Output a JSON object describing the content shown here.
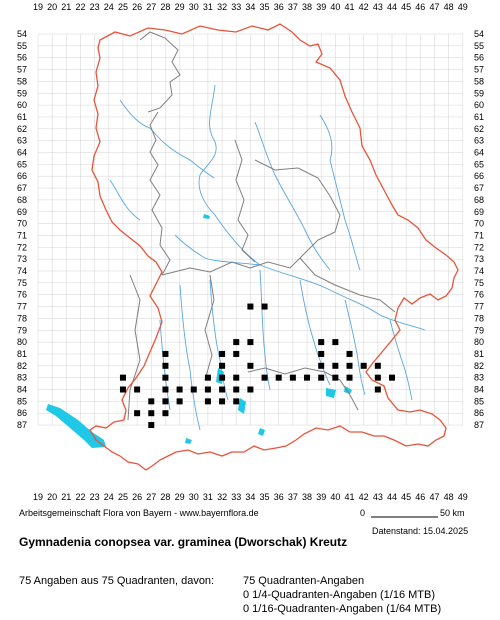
{
  "grid": {
    "x_labels": [
      "19",
      "20",
      "21",
      "22",
      "23",
      "24",
      "25",
      "26",
      "27",
      "28",
      "29",
      "30",
      "31",
      "32",
      "33",
      "34",
      "35",
      "36",
      "37",
      "38",
      "39",
      "40",
      "41",
      "42",
      "43",
      "44",
      "45",
      "46",
      "47",
      "48",
      "49"
    ],
    "y_labels": [
      "54",
      "55",
      "56",
      "57",
      "58",
      "59",
      "60",
      "61",
      "62",
      "63",
      "64",
      "65",
      "66",
      "67",
      "68",
      "69",
      "70",
      "71",
      "72",
      "73",
      "74",
      "75",
      "76",
      "77",
      "78",
      "79",
      "80",
      "81",
      "82",
      "83",
      "84",
      "85",
      "86",
      "87"
    ]
  },
  "occurrences": [
    [
      34,
      77
    ],
    [
      35,
      77
    ],
    [
      33,
      80
    ],
    [
      34,
      80
    ],
    [
      39,
      80
    ],
    [
      40,
      80
    ],
    [
      28,
      81
    ],
    [
      32,
      81
    ],
    [
      33,
      81
    ],
    [
      39,
      81
    ],
    [
      41,
      81
    ],
    [
      28,
      82
    ],
    [
      32,
      82
    ],
    [
      34,
      82
    ],
    [
      39,
      82
    ],
    [
      40,
      82
    ],
    [
      41,
      82
    ],
    [
      42,
      82
    ],
    [
      43,
      82
    ],
    [
      25,
      83
    ],
    [
      28,
      83
    ],
    [
      31,
      83
    ],
    [
      32,
      83
    ],
    [
      33,
      83
    ],
    [
      35,
      83
    ],
    [
      36,
      83
    ],
    [
      37,
      83
    ],
    [
      38,
      83
    ],
    [
      39,
      83
    ],
    [
      40,
      83
    ],
    [
      41,
      83
    ],
    [
      43,
      83
    ],
    [
      44,
      83
    ],
    [
      25,
      84
    ],
    [
      26,
      84
    ],
    [
      28,
      84
    ],
    [
      29,
      84
    ],
    [
      30,
      84
    ],
    [
      31,
      84
    ],
    [
      32,
      84
    ],
    [
      33,
      84
    ],
    [
      34,
      84
    ],
    [
      43,
      84
    ],
    [
      27,
      85
    ],
    [
      28,
      85
    ],
    [
      29,
      85
    ],
    [
      31,
      85
    ],
    [
      32,
      85
    ],
    [
      33,
      85
    ],
    [
      26,
      86
    ],
    [
      27,
      86
    ],
    [
      28,
      86
    ],
    [
      27,
      87
    ]
  ],
  "colors": {
    "border": "#e8543a",
    "districts": "#7f7f7f",
    "rivers": "#5aa7df",
    "lakes": "#1ec8e6",
    "grid": "#c8c8c8",
    "marker": "#000000"
  },
  "credit": "Arbeitsgemeinschaft Flora von Bayern - www.bayernflora.de",
  "date": "Datenstand: 15.04.2025",
  "scale": {
    "zero": "0",
    "end": "50 km"
  },
  "title": "Gymnadenia conopsea var. graminea (Dworschak) Kreutz",
  "stats": {
    "total": "75 Angaben aus 75 Quadranten, davon:",
    "quadrants": "75 Quadranten-Angaben",
    "quarter": "0 1/4-Quadranten-Angaben (1/16 MTB)",
    "sixteenth": "0 1/16-Quadranten-Angaben (1/64 MTB)"
  }
}
